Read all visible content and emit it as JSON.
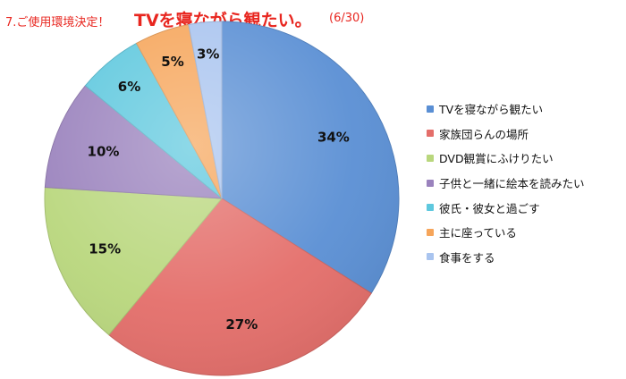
{
  "header": {
    "number": "7.ご使用環境決定！",
    "title": "TVを寝ながら観たい。",
    "date": "(6/30)"
  },
  "chart_data": {
    "type": "pie",
    "categories": [
      "TVを寝ながら観たい",
      "家族団らんの場所",
      "DVD観賞にふけりたい",
      "子供と一緒に絵本を読みたい",
      "彼氏・彼女と過ごす",
      "主に座っている",
      "食事をする"
    ],
    "values": [
      34,
      27,
      15,
      10,
      6,
      5,
      3
    ],
    "labels": [
      "34%",
      "27%",
      "15%",
      "10%",
      "6%",
      "5%",
      "3%"
    ],
    "unit": "%",
    "colors": [
      "#5a8fd4",
      "#e46e6a",
      "#b9d77d",
      "#9a82bd",
      "#5ec8de",
      "#f6a55a",
      "#a9c4ef"
    ],
    "legend_position": "right",
    "start": "12 o'clock",
    "direction": "clockwise"
  }
}
